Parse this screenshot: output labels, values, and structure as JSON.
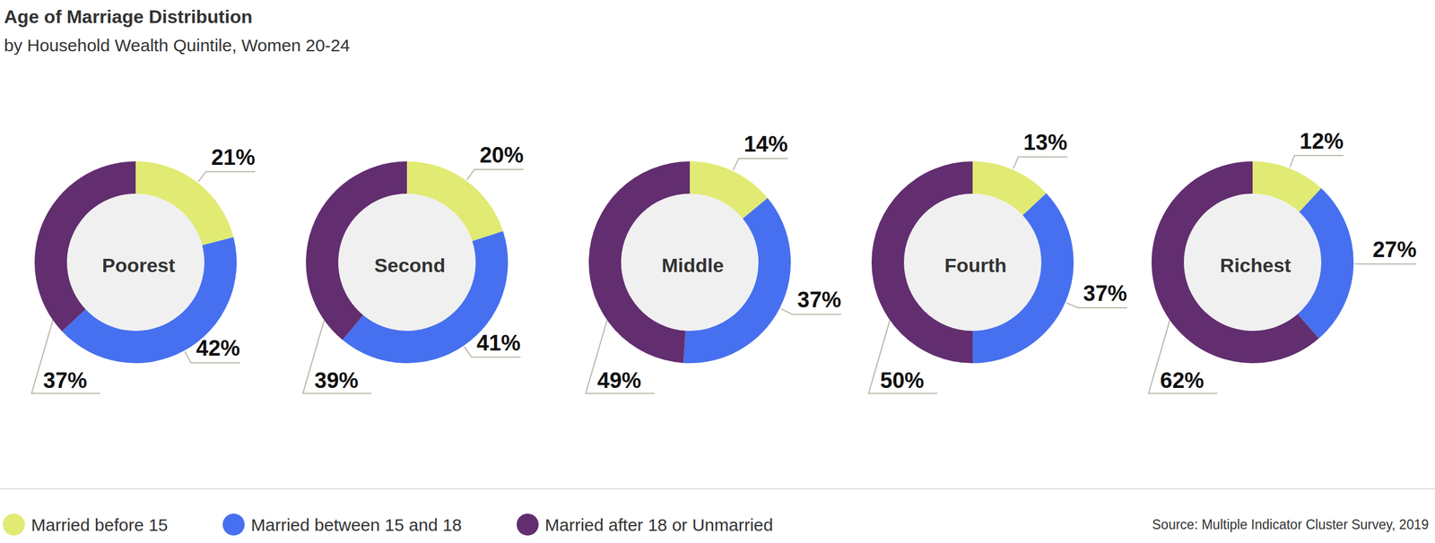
{
  "chart_data": {
    "type": "pie",
    "title": "Age of Marriage Distribution",
    "subtitle": "by Household Wealth Quintile, Women 20-24",
    "source": "Source: Multiple Indicator Cluster Survey, 2019",
    "categories": [
      "Poorest",
      "Second",
      "Middle",
      "Fourth",
      "Richest"
    ],
    "series": [
      {
        "name": "Married before 15",
        "color": "#e1ea73",
        "values": [
          21,
          20,
          14,
          13,
          12
        ],
        "value_labels": [
          "21%",
          "20%",
          "14%",
          "13%",
          "12%"
        ]
      },
      {
        "name": "Married between 15 and 18",
        "color": "#4670ef",
        "values": [
          42,
          41,
          37,
          37,
          27
        ],
        "value_labels": [
          "42%",
          "41%",
          "37%",
          "37%",
          "27%"
        ]
      },
      {
        "name": "Married after 18 or Unmarried",
        "color": "#622e6f",
        "values": [
          37,
          39,
          49,
          50,
          62
        ],
        "value_labels": [
          "37%",
          "39%",
          "49%",
          "50%",
          "62%"
        ]
      }
    ],
    "data_labels": true,
    "legend": "bottom left"
  }
}
